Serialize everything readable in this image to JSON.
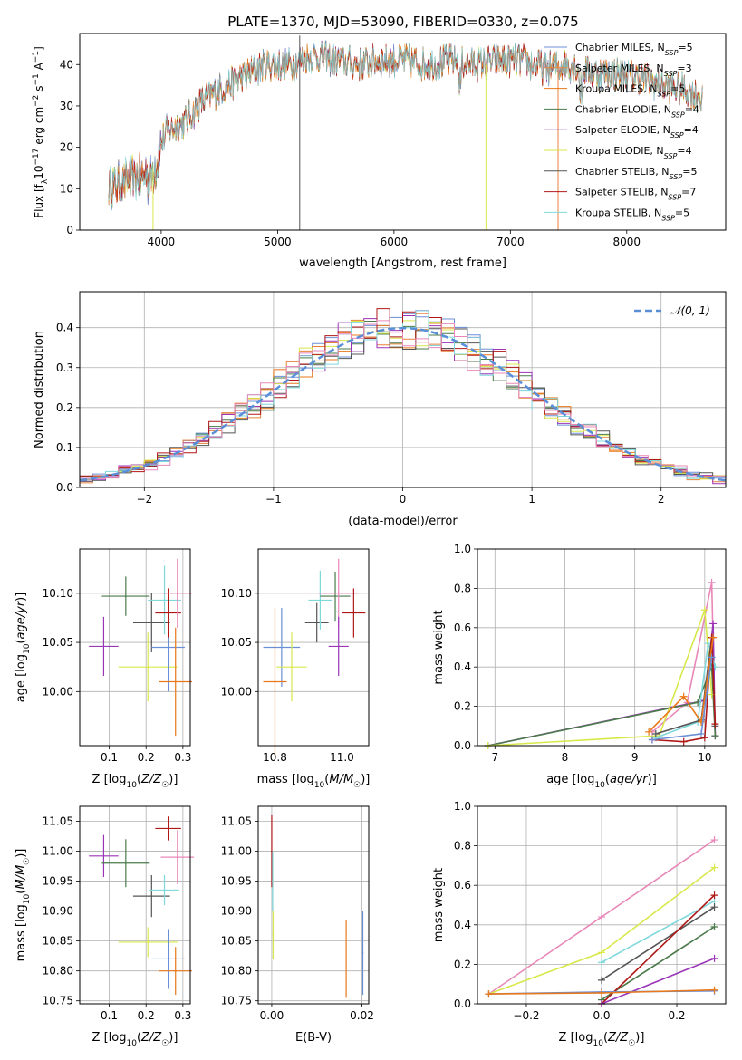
{
  "title": "PLATE=1370, MJD=53090, FIBERID=0330, z=0.075",
  "colors": {
    "chab_miles": "#6b8fd6",
    "salp_miles": "#e8823a",
    "krou_miles": "#e87818",
    "chab_elodie": "#4a7a4a",
    "salp_elodie": "#9a35b8",
    "krou_elodie": "#d8e84a",
    "chab_stelib": "#555555",
    "salp_stelib": "#b01818",
    "krou_stelib": "#7fd8dc",
    "pink": "#e887b8",
    "normal": "#5a8fd8"
  },
  "chart_data": [
    {
      "id": "spectrum",
      "type": "line",
      "xlabel": "wavelength [Angstrom, rest frame]",
      "ylabel": "Flux [f_λ10^-17 erg cm^-2 s^-1 A^-1]",
      "xlim": [
        3300,
        8850
      ],
      "ylim": [
        0,
        47.5
      ],
      "xticks": [
        4000,
        5000,
        6000,
        7000,
        8000
      ],
      "yticks": [
        0,
        10,
        20,
        30,
        40
      ],
      "grid": false,
      "legend_position": "right",
      "legend": [
        {
          "label": "Chabrier MILES, N_SSP=5",
          "color": "chab_miles"
        },
        {
          "label": "Salpeter MILES, N_SSP=3",
          "color": "salp_miles"
        },
        {
          "label": "Kroupa MILES, N_SSP=5",
          "color": "krou_miles"
        },
        {
          "label": "Chabrier ELODIE, N_SSP=4",
          "color": "chab_elodie"
        },
        {
          "label": "Salpeter ELODIE, N_SSP=4",
          "color": "salp_elodie"
        },
        {
          "label": "Kroupa ELODIE, N_SSP=4",
          "color": "krou_elodie"
        },
        {
          "label": "Chabrier STELIB, N_SSP=5",
          "color": "chab_stelib"
        },
        {
          "label": "Salpeter STELIB, N_SSP=7",
          "color": "salp_stelib"
        },
        {
          "label": "Kroupa STELIB, N_SSP=5",
          "color": "krou_stelib"
        }
      ],
      "continuum": [
        [
          3550,
          10
        ],
        [
          3700,
          12
        ],
        [
          3850,
          13
        ],
        [
          3950,
          18
        ],
        [
          4050,
          24
        ],
        [
          4200,
          26
        ],
        [
          4350,
          31
        ],
        [
          4500,
          34
        ],
        [
          4700,
          37
        ],
        [
          4900,
          40
        ],
        [
          5100,
          40
        ],
        [
          5300,
          42
        ],
        [
          5500,
          41
        ],
        [
          5700,
          40
        ],
        [
          5900,
          41
        ],
        [
          6100,
          41
        ],
        [
          6300,
          40
        ],
        [
          6500,
          41
        ],
        [
          6700,
          40
        ],
        [
          6900,
          41
        ],
        [
          7100,
          41
        ],
        [
          7300,
          39
        ],
        [
          7500,
          40
        ],
        [
          7700,
          38
        ],
        [
          7900,
          38
        ],
        [
          8100,
          37
        ],
        [
          8300,
          35
        ],
        [
          8500,
          34
        ],
        [
          8650,
          32
        ]
      ],
      "spikes": [
        {
          "x": 5190,
          "y_top": 47,
          "color": "chab_stelib"
        },
        {
          "x": 6790,
          "y_bottom": 0,
          "y_top": 40,
          "color": "krou_elodie"
        },
        {
          "x": 7410,
          "y_bottom": 0,
          "y_top": 40,
          "color": "salp_miles"
        },
        {
          "x": 3930,
          "y_bottom": 0,
          "y_top": 15,
          "color": "krou_elodie"
        }
      ]
    },
    {
      "id": "residuals",
      "type": "histogram",
      "xlabel": "(data-model)/error",
      "ylabel": "Normed distribution",
      "xlim": [
        -2.5,
        2.5
      ],
      "ylim": [
        0,
        0.49
      ],
      "xticks": [
        -2,
        -1,
        0,
        1,
        2
      ],
      "yticks": [
        0.0,
        0.1,
        0.2,
        0.3,
        0.4
      ],
      "grid": true,
      "bin_width": 0.1,
      "legend": [
        {
          "label": "N(0,1)",
          "style": "dashed",
          "color": "normal"
        }
      ]
    },
    {
      "id": "age_vs_Z",
      "type": "errorbar",
      "xlabel": "Z [log10(Z/Z☉)]",
      "ylabel": "age [log10(age/yr)]",
      "xlim": [
        0.02,
        0.32
      ],
      "ylim": [
        9.945,
        10.145
      ],
      "xticks": [
        0.1,
        0.2,
        0.3
      ],
      "yticks": [
        10.0,
        10.05,
        10.1
      ],
      "grid": true,
      "points": [
        {
          "x": 0.085,
          "y": 10.046,
          "xerr": 0.04,
          "yerr": 0.03,
          "color": "salp_elodie"
        },
        {
          "x": 0.145,
          "y": 10.097,
          "xerr": 0.065,
          "yerr": 0.02,
          "color": "chab_elodie"
        },
        {
          "x": 0.205,
          "y": 10.025,
          "xerr": 0.08,
          "yerr": 0.035,
          "color": "krou_elodie"
        },
        {
          "x": 0.215,
          "y": 10.07,
          "xerr": 0.05,
          "yerr": 0.03,
          "color": "chab_stelib"
        },
        {
          "x": 0.26,
          "y": 10.045,
          "xerr": 0.045,
          "yerr": 0.045,
          "color": "chab_miles"
        },
        {
          "x": 0.25,
          "y": 10.093,
          "xerr": 0.045,
          "yerr": 0.035,
          "color": "krou_stelib"
        },
        {
          "x": 0.26,
          "y": 10.08,
          "xerr": 0.035,
          "yerr": 0.025,
          "color": "salp_stelib"
        },
        {
          "x": 0.285,
          "y": 10.1,
          "xerr": 0.04,
          "yerr": 0.035,
          "color": "pink"
        },
        {
          "x": 0.28,
          "y": 10.01,
          "xerr": 0.045,
          "yerr": 0.055,
          "color": "krou_miles"
        }
      ]
    },
    {
      "id": "age_vs_mass",
      "type": "errorbar",
      "xlabel": "mass [log10(M/M☉)]",
      "ylabel": "",
      "xlim": [
        10.75,
        11.08
      ],
      "ylim": [
        9.945,
        10.145
      ],
      "xticks": [
        10.8,
        11.0
      ],
      "yticks": [
        10.0,
        10.05,
        10.1
      ],
      "grid": true,
      "points": [
        {
          "x": 10.82,
          "y": 10.045,
          "xerr": 0.055,
          "yerr": 0.04,
          "color": "chab_miles"
        },
        {
          "x": 10.8,
          "y": 10.01,
          "xerr": 0.035,
          "yerr": 0.075,
          "color": "krou_miles"
        },
        {
          "x": 10.85,
          "y": 10.025,
          "xerr": 0.045,
          "yerr": 0.035,
          "color": "krou_elodie"
        },
        {
          "x": 10.925,
          "y": 10.07,
          "xerr": 0.035,
          "yerr": 0.02,
          "color": "chab_stelib"
        },
        {
          "x": 10.935,
          "y": 10.093,
          "xerr": 0.035,
          "yerr": 0.03,
          "color": "krou_stelib"
        },
        {
          "x": 10.98,
          "y": 10.097,
          "xerr": 0.045,
          "yerr": 0.025,
          "color": "chab_elodie"
        },
        {
          "x": 10.99,
          "y": 10.1,
          "xerr": 0.06,
          "yerr": 0.035,
          "color": "pink"
        },
        {
          "x": 10.99,
          "y": 10.046,
          "xerr": 0.03,
          "yerr": 0.03,
          "color": "salp_elodie"
        },
        {
          "x": 11.035,
          "y": 10.08,
          "xerr": 0.035,
          "yerr": 0.025,
          "color": "salp_stelib"
        }
      ]
    },
    {
      "id": "massweight_vs_age",
      "type": "line",
      "xlabel": "age [log10(age/yr)]",
      "ylabel": "mass weight",
      "xlim": [
        6.75,
        10.3
      ],
      "ylim": [
        0,
        1.0
      ],
      "xticks": [
        7,
        8,
        9,
        10
      ],
      "yticks": [
        0.0,
        0.2,
        0.4,
        0.6,
        0.8,
        1.0
      ],
      "grid": true,
      "series": [
        {
          "color": "pink",
          "x": [
            9.25,
            9.75,
            10.1,
            10.15
          ],
          "y": [
            0.07,
            0.22,
            0.83,
            0.05
          ]
        },
        {
          "color": "salp_elodie",
          "x": [
            6.9,
            10.0,
            10.12,
            10.15
          ],
          "y": [
            0.0,
            0.23,
            0.62,
            0.05
          ]
        },
        {
          "color": "chab_elodie",
          "x": [
            6.9,
            9.9,
            10.1,
            10.15
          ],
          "y": [
            0.0,
            0.22,
            0.4,
            0.05
          ]
        },
        {
          "color": "krou_elodie",
          "x": [
            6.9,
            9.35,
            10.0,
            10.1
          ],
          "y": [
            0.0,
            0.05,
            0.69,
            0.26
          ]
        },
        {
          "color": "krou_stelib",
          "x": [
            9.3,
            9.9,
            10.05,
            10.15
          ],
          "y": [
            0.04,
            0.12,
            0.52,
            0.4
          ]
        },
        {
          "color": "chab_stelib",
          "x": [
            9.3,
            9.95,
            10.1,
            10.15
          ],
          "y": [
            0.06,
            0.13,
            0.55,
            0.1
          ]
        },
        {
          "color": "salp_stelib",
          "x": [
            9.25,
            9.7,
            10.0,
            10.1,
            10.15
          ],
          "y": [
            0.03,
            0.02,
            0.04,
            0.55,
            0.11
          ]
        },
        {
          "color": "krou_miles",
          "x": [
            9.2,
            9.7,
            9.95,
            10.12
          ],
          "y": [
            0.07,
            0.25,
            0.12,
            0.55
          ]
        },
        {
          "color": "chab_miles",
          "x": [
            9.25,
            9.95,
            10.1
          ],
          "y": [
            0.03,
            0.06,
            0.45
          ]
        }
      ]
    },
    {
      "id": "mass_vs_Z",
      "type": "errorbar",
      "xlabel": "Z [log10(Z/Z☉)]",
      "ylabel": "mass [log10(M/M☉)]",
      "xlim": [
        0.02,
        0.32
      ],
      "ylim": [
        10.745,
        11.075
      ],
      "xticks": [
        0.1,
        0.2,
        0.3
      ],
      "yticks": [
        10.75,
        10.8,
        10.85,
        10.9,
        10.95,
        11.0,
        11.05
      ],
      "grid": true,
      "points": [
        {
          "x": 0.085,
          "y": 10.992,
          "xerr": 0.04,
          "yerr": 0.035,
          "color": "salp_elodie"
        },
        {
          "x": 0.145,
          "y": 10.98,
          "xerr": 0.065,
          "yerr": 0.04,
          "color": "chab_elodie"
        },
        {
          "x": 0.205,
          "y": 10.848,
          "xerr": 0.08,
          "yerr": 0.025,
          "color": "krou_elodie"
        },
        {
          "x": 0.215,
          "y": 10.925,
          "xerr": 0.05,
          "yerr": 0.035,
          "color": "chab_stelib"
        },
        {
          "x": 0.25,
          "y": 10.935,
          "xerr": 0.04,
          "yerr": 0.025,
          "color": "krou_stelib"
        },
        {
          "x": 0.26,
          "y": 10.82,
          "xerr": 0.045,
          "yerr": 0.05,
          "color": "chab_miles"
        },
        {
          "x": 0.26,
          "y": 11.038,
          "xerr": 0.035,
          "yerr": 0.02,
          "color": "salp_stelib"
        },
        {
          "x": 0.285,
          "y": 10.99,
          "xerr": 0.045,
          "yerr": 0.045,
          "color": "pink"
        },
        {
          "x": 0.28,
          "y": 10.8,
          "xerr": 0.045,
          "yerr": 0.04,
          "color": "krou_miles"
        }
      ]
    },
    {
      "id": "mass_vs_ebv",
      "type": "errorbar",
      "xlabel": "E(B-V)",
      "ylabel": "",
      "xlim": [
        -0.003,
        0.0215
      ],
      "ylim": [
        10.745,
        11.075
      ],
      "xticks": [
        0.0,
        0.02
      ],
      "yticks": [
        10.75,
        10.8,
        10.85,
        10.9,
        10.95,
        11.0,
        11.05
      ],
      "grid": true,
      "points": [
        {
          "x": 0.0,
          "y": 11.0,
          "xerr": 0,
          "yerr": 0.06,
          "color": "salp_stelib"
        },
        {
          "x": 0.0002,
          "y": 10.95,
          "xerr": 0,
          "yerr": 0.05,
          "color": "krou_stelib"
        },
        {
          "x": 0.0003,
          "y": 10.86,
          "xerr": 0,
          "yerr": 0.04,
          "color": "krou_elodie"
        },
        {
          "x": 0.0165,
          "y": 10.82,
          "xerr": 0,
          "yerr": 0.065,
          "color": "krou_miles"
        },
        {
          "x": 0.0202,
          "y": 10.83,
          "xerr": 0,
          "yerr": 0.07,
          "color": "chab_miles"
        }
      ]
    },
    {
      "id": "massweight_vs_Z",
      "type": "line",
      "xlabel": "Z [log10(Z/Z☉)]",
      "ylabel": "mass weight",
      "xlim": [
        -0.33,
        0.33
      ],
      "ylim": [
        0,
        1.0
      ],
      "xticks": [
        -0.2,
        0.0,
        0.2
      ],
      "yticks": [
        0.0,
        0.2,
        0.4,
        0.6,
        0.8,
        1.0
      ],
      "grid": true,
      "series": [
        {
          "color": "pink",
          "x": [
            -0.3,
            0.0,
            0.3
          ],
          "y": [
            0.05,
            0.44,
            0.83
          ]
        },
        {
          "color": "krou_elodie",
          "x": [
            -0.3,
            0.0,
            0.3
          ],
          "y": [
            0.05,
            0.26,
            0.69
          ]
        },
        {
          "color": "krou_stelib",
          "x": [
            0.0,
            0.3
          ],
          "y": [
            0.21,
            0.52
          ]
        },
        {
          "color": "chab_stelib",
          "x": [
            0.0,
            0.3
          ],
          "y": [
            0.12,
            0.49
          ]
        },
        {
          "color": "chab_elodie",
          "x": [
            0.0,
            0.3
          ],
          "y": [
            0.02,
            0.39
          ]
        },
        {
          "color": "salp_stelib",
          "x": [
            0.0,
            0.3
          ],
          "y": [
            0.0,
            0.55
          ]
        },
        {
          "color": "salp_elodie",
          "x": [
            0.0,
            0.3
          ],
          "y": [
            0.0,
            0.23
          ]
        },
        {
          "color": "chab_miles",
          "x": [
            -0.3,
            0.0,
            0.3
          ],
          "y": [
            0.05,
            0.06,
            0.065
          ]
        },
        {
          "color": "krou_miles",
          "x": [
            -0.3,
            0.0,
            0.3
          ],
          "y": [
            0.05,
            0.055,
            0.07
          ]
        }
      ]
    }
  ]
}
